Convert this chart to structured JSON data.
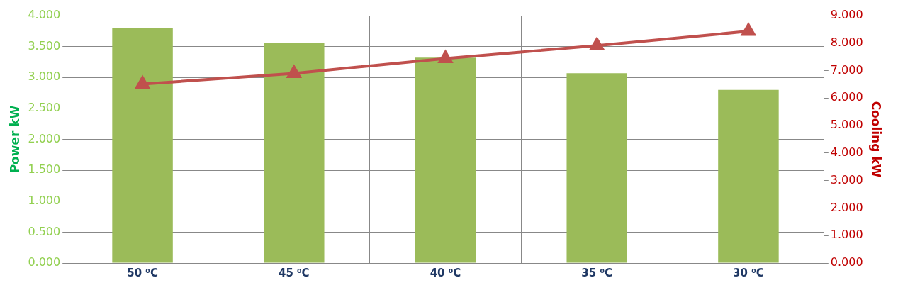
{
  "chart_data": {
    "type": "bar",
    "ylabel": "Power kW",
    "y2label": "Cooling kW",
    "categories": [
      "50 ⁰C",
      "45 ⁰C",
      "40 ⁰C",
      "35 ⁰C",
      "30 ⁰C"
    ],
    "series": [
      {
        "color": "#9bbb59",
        "values": [
          3.8,
          3.56,
          3.32,
          3.07,
          2.8
        ]
      },
      {
        "type": "line",
        "axis": "y2",
        "color": "#c0504d",
        "values": [
          6.51,
          6.9,
          7.44,
          7.91,
          8.43
        ]
      }
    ],
    "ylim": [
      0,
      4
    ],
    "yticks": [
      {
        "value": 0,
        "label": "0.000"
      },
      {
        "value": 0.5,
        "label": "0.500"
      },
      {
        "value": 1,
        "label": "1.000"
      },
      {
        "value": 1.5,
        "label": "1.500"
      },
      {
        "value": 2,
        "label": "2.000"
      },
      {
        "value": 2.5,
        "label": "2.500"
      },
      {
        "value": 3,
        "label": "3.000"
      },
      {
        "value": 3.5,
        "label": "3.500"
      },
      {
        "value": 4,
        "label": "4.000"
      }
    ],
    "y2lim": [
      0,
      9
    ],
    "y2ticks": [
      {
        "value": 0,
        "label": "0.000"
      },
      {
        "value": 1,
        "label": "1.000"
      },
      {
        "value": 2,
        "label": "2.000"
      },
      {
        "value": 3,
        "label": "3.000"
      },
      {
        "value": 4,
        "label": "4.000"
      },
      {
        "value": 5,
        "label": "5.000"
      },
      {
        "value": 6,
        "label": "6.000"
      },
      {
        "value": 7,
        "label": "7.000"
      },
      {
        "value": 8,
        "label": "8.000"
      },
      {
        "value": 9,
        "label": "9.000"
      }
    ],
    "grid": true,
    "legend": false,
    "marker": "triangle",
    "line_style": "solid"
  }
}
